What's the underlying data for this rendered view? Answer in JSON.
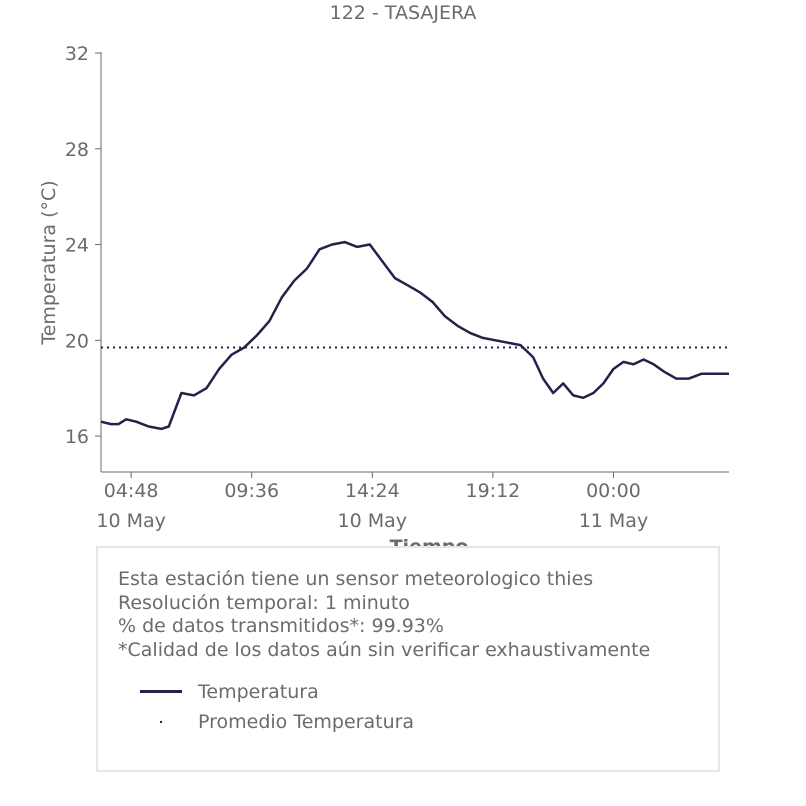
{
  "chart_data": {
    "type": "line",
    "title": "122 - TASAJERA",
    "ylabel": "Temperatura (°C)",
    "xlabel": "Tiempo",
    "ylim": [
      14.5,
      32
    ],
    "xlim": [
      3.6,
      28.6
    ],
    "yticks": [
      16,
      20,
      24,
      28,
      32
    ],
    "xticks": [
      {
        "x": 4.8,
        "label": "04:48",
        "sublabel": "10 May"
      },
      {
        "x": 9.6,
        "label": "09:36",
        "sublabel": ""
      },
      {
        "x": 14.4,
        "label": "14:24",
        "sublabel": "10 May"
      },
      {
        "x": 19.2,
        "label": "19:12",
        "sublabel": ""
      },
      {
        "x": 24.0,
        "label": "00:00",
        "sublabel": "11 May"
      }
    ],
    "series": [
      {
        "name": "Temperatura",
        "color": "#23234a",
        "x": [
          3.6,
          4.0,
          4.3,
          4.6,
          5.0,
          5.5,
          6.0,
          6.3,
          6.8,
          7.3,
          7.8,
          8.3,
          8.8,
          9.3,
          9.8,
          10.3,
          10.8,
          11.3,
          11.8,
          12.3,
          12.8,
          13.3,
          13.8,
          14.3,
          14.8,
          15.3,
          15.8,
          16.3,
          16.8,
          17.3,
          17.8,
          18.3,
          18.8,
          19.3,
          19.8,
          20.3,
          20.8,
          21.2,
          21.6,
          22.0,
          22.4,
          22.8,
          23.2,
          23.6,
          24.0,
          24.4,
          24.8,
          25.2,
          25.6,
          26.0,
          26.5,
          27.0,
          27.5,
          28.0,
          28.6
        ],
        "y": [
          16.6,
          16.5,
          16.5,
          16.7,
          16.6,
          16.4,
          16.3,
          16.4,
          17.8,
          17.7,
          18.0,
          18.8,
          19.4,
          19.7,
          20.2,
          20.8,
          21.8,
          22.5,
          23.0,
          23.8,
          24.0,
          24.1,
          23.9,
          24.0,
          23.3,
          22.6,
          22.3,
          22.0,
          21.6,
          21.0,
          20.6,
          20.3,
          20.1,
          20.0,
          19.9,
          19.8,
          19.3,
          18.4,
          17.8,
          18.2,
          17.7,
          17.6,
          17.8,
          18.2,
          18.8,
          19.1,
          19.0,
          19.2,
          19.0,
          18.7,
          18.4,
          18.4,
          18.6,
          18.6,
          18.6
        ]
      },
      {
        "name": "Promedio Temperatura",
        "color": "#23234a",
        "constant": 19.7
      }
    ],
    "grid": false,
    "legend_position": "bottom"
  },
  "info": {
    "lines": [
      "Esta estación tiene un sensor meteorologico thies",
      "Resolución temporal: 1 minuto",
      "% de datos transmitidos*: 99.93%",
      "*Calidad de los datos aún sin verificar exhaustivamente"
    ]
  },
  "colors": {
    "line": "#23234a",
    "text": "#6b6b6b",
    "axis": "#6b6b6b",
    "box_border": "#e6e6e6"
  }
}
